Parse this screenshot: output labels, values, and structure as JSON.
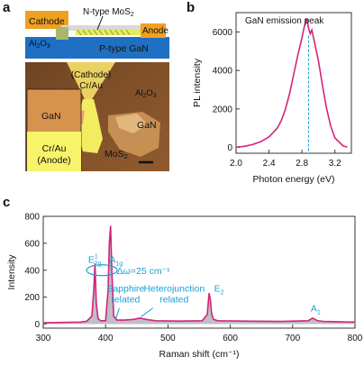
{
  "figure": {
    "panel_labels": [
      "a",
      "b",
      "c"
    ],
    "colors": {
      "trace": "#d4237a",
      "fill": "#a9a9b5",
      "annotation": "#1aa0d8",
      "dashed_peak_line": "#1aa0d8",
      "gan_blue": "#1f6fc2",
      "cathode_orange": "#f0a020",
      "anode_orange": "#f0a020"
    }
  },
  "panel_a": {
    "schematic": {
      "cathode": "Cathode",
      "n_type": "N-type MoS",
      "n_type_sub": "2",
      "anode": "Anode",
      "al2o3": "Al",
      "al2o3_sub1": "2",
      "al2o3_mid": "O",
      "al2o3_sub2": "3",
      "p_gan": "P-type GaN"
    },
    "micrograph": {
      "cathode_line1": "(Cathode)",
      "cathode_line2": "Cr/Au",
      "al2o3": "Al",
      "al2o3_sub1": "2",
      "al2o3_mid": "O",
      "al2o3_sub2": "3",
      "gan_left": "GaN",
      "gan_right": "GaN",
      "mos2": "MoS",
      "mos2_sub": "2",
      "anode_line1": "Cr/Au",
      "anode_line2": "(Anode)"
    }
  },
  "chart_data": [
    {
      "panel": "b",
      "type": "line",
      "title": "",
      "annotation": "GaN emission peak",
      "xlabel": "Photon energy (eV)",
      "ylabel": "PL intensity",
      "xlim": [
        2.0,
        3.4
      ],
      "ylim": [
        -300,
        7000
      ],
      "xticks": [
        2.0,
        2.4,
        2.8,
        3.2
      ],
      "xtick_labels": [
        "2.0",
        "2.4",
        "2.8",
        "3.2"
      ],
      "yticks": [
        0,
        2000,
        4000,
        6000
      ],
      "ytick_labels": [
        "0",
        "2000",
        "4000",
        "6000"
      ],
      "peak_marker_x": 2.88,
      "x": [
        2.0,
        2.1,
        2.2,
        2.3,
        2.4,
        2.5,
        2.55,
        2.6,
        2.65,
        2.7,
        2.75,
        2.8,
        2.83,
        2.86,
        2.88,
        2.9,
        2.92,
        2.95,
        3.0,
        3.05,
        3.1,
        3.15,
        3.2,
        3.3,
        3.35
      ],
      "y": [
        10,
        60,
        150,
        300,
        550,
        1000,
        1400,
        2000,
        2800,
        3800,
        4800,
        5700,
        6300,
        6700,
        6200,
        5900,
        6100,
        5500,
        4500,
        3200,
        2000,
        1100,
        500,
        80,
        20
      ]
    },
    {
      "panel": "c",
      "type": "line",
      "title": "",
      "xlabel": "Raman shift (cm⁻¹)",
      "ylabel": "Intensity",
      "xlim": [
        300,
        800
      ],
      "ylim": [
        -30,
        800
      ],
      "xticks": [
        300,
        400,
        500,
        600,
        700,
        800
      ],
      "xtick_labels": [
        "300",
        "400",
        "500",
        "600",
        "700",
        "800"
      ],
      "yticks": [
        0,
        200,
        400,
        600,
        800
      ],
      "ytick_labels": [
        "0",
        "200",
        "400",
        "600",
        "800"
      ],
      "x": [
        300,
        330,
        360,
        370,
        378,
        381,
        383,
        385,
        388,
        392,
        400,
        404,
        406,
        408,
        410,
        413,
        418,
        430,
        445,
        455,
        465,
        480,
        520,
        555,
        563,
        566,
        568,
        570,
        573,
        580,
        620,
        680,
        725,
        732,
        736,
        740,
        750,
        800
      ],
      "y": [
        10,
        12,
        15,
        22,
        60,
        250,
        450,
        160,
        40,
        25,
        25,
        250,
        600,
        730,
        400,
        60,
        30,
        30,
        35,
        45,
        35,
        25,
        22,
        25,
        70,
        230,
        180,
        80,
        35,
        25,
        22,
        20,
        25,
        45,
        35,
        25,
        20,
        15
      ],
      "annotations": {
        "e2g_main": "E",
        "e2g_sup": "1",
        "e2g_sub": "2g",
        "a1g_main": "A",
        "a1g_sub": "1g",
        "delta": "Δω=25 cm⁻¹",
        "sapphire_line1": "Sapphire",
        "sapphire_line2": "related",
        "hetero_line1": "Heterojunction",
        "hetero_line2": "related",
        "e2_main": "E",
        "e2_sub": "2",
        "a1_main": "A",
        "a1_sub": "1"
      }
    }
  ]
}
